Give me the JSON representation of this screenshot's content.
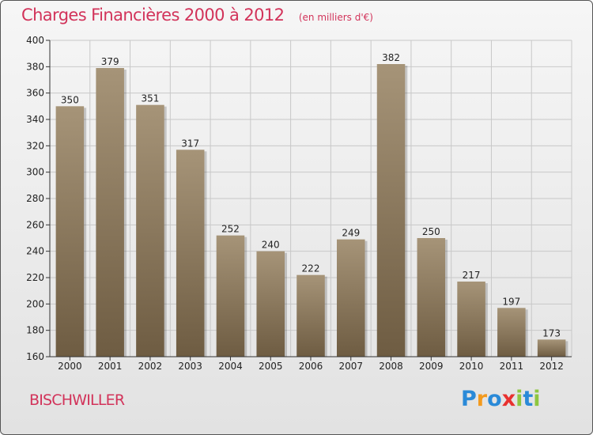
{
  "title": "Charges Financières 2000 à 2012",
  "subtitle": "(en milliers d'€)",
  "city": "BISCHWILLER",
  "brand": {
    "letters": [
      {
        "ch": "P",
        "color": "#2a8ad8"
      },
      {
        "ch": "r",
        "color": "#f39a1e"
      },
      {
        "ch": "o",
        "color": "#2a8ad8"
      },
      {
        "ch": "x",
        "color": "#e8312f"
      },
      {
        "ch": "i",
        "color": "#8ec63f"
      },
      {
        "ch": "t",
        "color": "#2a8ad8"
      },
      {
        "ch": "i",
        "color": "#8ec63f"
      }
    ]
  },
  "colors": {
    "title": "#d2335a",
    "bar_top": "#a69478",
    "bar_bottom": "#6e5c42",
    "grid": "#c8c8c8",
    "axis": "#333333"
  },
  "chart_data": {
    "type": "bar",
    "categories": [
      "2000",
      "2001",
      "2002",
      "2003",
      "2004",
      "2005",
      "2006",
      "2007",
      "2008",
      "2009",
      "2010",
      "2011",
      "2012"
    ],
    "values": [
      350,
      379,
      351,
      317,
      252,
      240,
      222,
      249,
      382,
      250,
      217,
      197,
      173
    ],
    "ylim": [
      160,
      400
    ],
    "yticks": [
      160,
      180,
      200,
      220,
      240,
      260,
      280,
      300,
      320,
      340,
      360,
      380,
      400
    ],
    "grid": true,
    "xlabel": "",
    "ylabel": ""
  }
}
